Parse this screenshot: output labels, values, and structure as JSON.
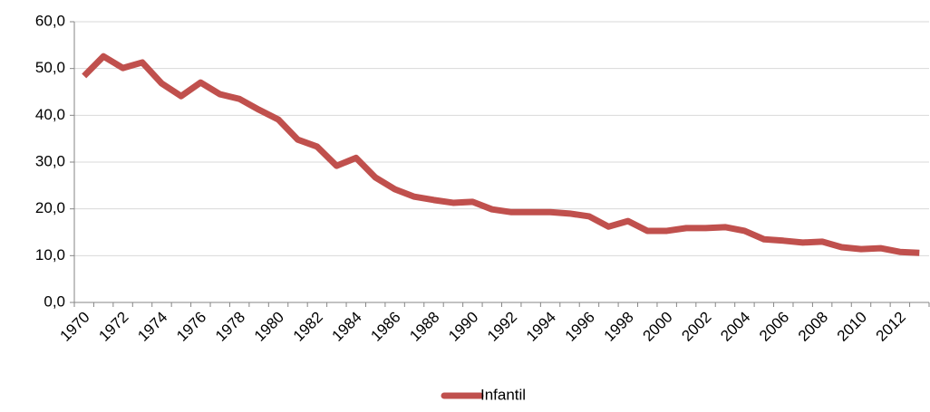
{
  "chart_data": {
    "type": "line",
    "categories": [
      "1970",
      null,
      "1972",
      null,
      "1974",
      null,
      "1976",
      null,
      "1978",
      null,
      "1980",
      null,
      "1982",
      null,
      "1984",
      null,
      "1986",
      null,
      "1988",
      null,
      "1990",
      null,
      "1992",
      null,
      "1994",
      null,
      "1996",
      null,
      "1998",
      null,
      "2000",
      null,
      "2002",
      null,
      "2004",
      null,
      "2006",
      null,
      "2008",
      null,
      "2010",
      null,
      "2012",
      null
    ],
    "series": [
      {
        "name": "Infantil",
        "color": "#c0504d",
        "values": [
          48.4,
          52.6,
          50.1,
          51.3,
          46.8,
          44.1,
          47.0,
          44.5,
          43.5,
          41.2,
          39.1,
          34.8,
          33.3,
          29.2,
          30.9,
          26.7,
          24.2,
          22.6,
          21.9,
          21.3,
          21.5,
          19.9,
          19.3,
          19.3,
          19.3,
          19.0,
          18.4,
          16.2,
          17.4,
          15.3,
          15.3,
          15.9,
          15.9,
          16.1,
          15.3,
          13.5,
          13.2,
          12.8,
          13.0,
          11.8,
          11.4,
          11.6,
          10.8,
          10.6
        ]
      }
    ],
    "ylim": [
      0,
      60
    ],
    "yticks": [
      {
        "value": 0,
        "label": "0,0"
      },
      {
        "value": 10,
        "label": "10,0"
      },
      {
        "value": 20,
        "label": "20,0"
      },
      {
        "value": 30,
        "label": "30,0"
      },
      {
        "value": 40,
        "label": "40,0"
      },
      {
        "value": 50,
        "label": "50,0"
      },
      {
        "value": 60,
        "label": "60,0"
      }
    ],
    "grid": true,
    "legend": "bottom"
  }
}
